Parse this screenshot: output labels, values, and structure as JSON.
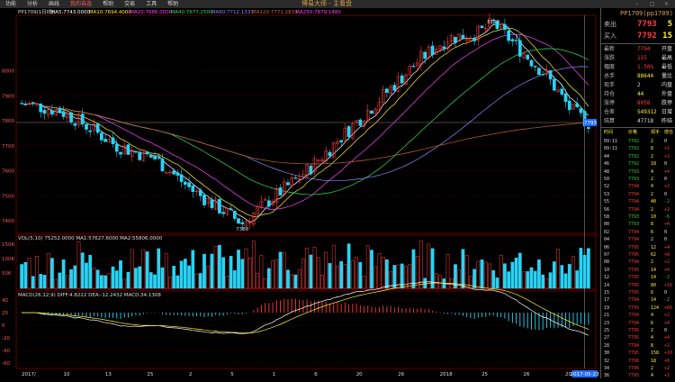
{
  "app": {
    "title": "博易大师 - 主看盘"
  },
  "menus": [
    {
      "label": "功能",
      "active": false
    },
    {
      "label": "分析",
      "active": false
    },
    {
      "label": "画线",
      "active": false
    },
    {
      "label": "我的自选",
      "active": true
    },
    {
      "label": "帮助",
      "active": false
    },
    {
      "label": "交易",
      "active": false
    },
    {
      "label": "工具",
      "active": false
    },
    {
      "label": "帮助",
      "active": false
    }
  ],
  "window_controls": [
    "–",
    "□",
    "×"
  ],
  "colors": {
    "up": "#ff3b3b",
    "down": "#29d3f5",
    "ma5": "#ffffff",
    "ma10": "#ffee33",
    "ma20": "#ff44ff",
    "ma40": "#33dd55",
    "ma60": "#8888ff",
    "ma120": "#c86432",
    "bg": "#000000",
    "grid": "#7a0000"
  },
  "main_chart": {
    "info_line": [
      {
        "text": "PP1709(1日线)",
        "color": "#dddddd"
      },
      {
        "text": "MA5:7743.0000",
        "color": "#ffffff"
      },
      {
        "text": "MA10:7694.4000",
        "color": "#ffee33"
      },
      {
        "text": "MA20:7686.0000",
        "color": "#ff44ff"
      },
      {
        "text": "MA40:7677.2500",
        "color": "#33dd55"
      },
      {
        "text": "MA60:7712.1333",
        "color": "#8888ff"
      },
      {
        "text": "MA120:7771.2833",
        "color": "#c86432"
      },
      {
        "text": "MA250:7879.1480",
        "color": "#ff44ff"
      }
    ],
    "y_ticks": [
      {
        "v": 8000,
        "t": "8000"
      },
      {
        "v": 7900,
        "t": "7900"
      },
      {
        "v": 7800,
        "t": "7800"
      },
      {
        "v": 7700,
        "t": "7700"
      },
      {
        "v": 7600,
        "t": "7600"
      },
      {
        "v": 7500,
        "t": "7500"
      },
      {
        "v": 7400,
        "t": "7400"
      }
    ],
    "high_label": "8193",
    "low_label": "7388",
    "last_price_tag": "7793"
  },
  "volume_panel": {
    "info": "VOL(5,10) 75252.0000 MA1:57627.6000 MA2:55806.0000",
    "y_ticks": [
      "150K",
      "100K",
      "50K"
    ]
  },
  "macd_panel": {
    "info": "MACD(26,12,9) DIFF:4.8222 DEA:-12.2432 MACD:34.1308",
    "y_ticks": [
      "40",
      "20",
      "0",
      "-20",
      "-40",
      "-60"
    ]
  },
  "x_axis": {
    "labels": [
      "2017/",
      "10",
      "13",
      "25",
      "2",
      "5",
      "1",
      "6",
      "20",
      "26",
      "2018",
      "25",
      "26",
      "2017/"
    ],
    "cursor_tag": "2017-05-23"
  },
  "quote": {
    "title": "PP1709(pp1709)",
    "sell": {
      "label": "卖出",
      "price": "7793",
      "qty": "5"
    },
    "buy": {
      "label": "买入",
      "price": "7792",
      "qty": "15"
    },
    "stats": [
      {
        "l": "最新",
        "v1": "7794",
        "v2": "开盘",
        "c1": "red"
      },
      {
        "l": "涨跌",
        "v1": "115",
        "v2": "最高",
        "c1": "red"
      },
      {
        "l": "幅度",
        "v1": "1.50%",
        "v2": "最低",
        "c1": "red"
      },
      {
        "l": "总手",
        "v1": "88644",
        "v2": "量比",
        "c1": "yellow"
      },
      {
        "l": "现手",
        "v1": "2",
        "v2": "内盘",
        "c1": "white"
      },
      {
        "l": "持仓",
        "v1": "44",
        "v2": "外盘",
        "c1": "yellow"
      },
      {
        "l": "涨停",
        "v1": "8058",
        "v2": "跌停",
        "c1": "red"
      },
      {
        "l": "仓差",
        "v1": "549312",
        "v2": "日增",
        "c1": "yellow"
      },
      {
        "l": "结算",
        "v1": "47718",
        "v2": "昨结",
        "c1": "white"
      }
    ],
    "ticks_header": [
      "时间",
      "价格",
      "现手",
      "增仓"
    ],
    "ticks": [
      {
        "t": "09:11",
        "p": "7792",
        "q": "2",
        "o": "0"
      },
      {
        "t": "09:11",
        "p": "7792",
        "q": "8",
        "o": "+1"
      },
      {
        "t": "44",
        "p": "7792",
        "q": "2",
        "o": "+2"
      },
      {
        "t": "46",
        "p": "7792",
        "q": "18",
        "o": "0"
      },
      {
        "t": "48",
        "p": "7793",
        "q": "4",
        "o": "+4"
      },
      {
        "t": "50",
        "p": "7793",
        "q": "2",
        "o": "0"
      },
      {
        "t": "52",
        "p": "7794",
        "q": "4",
        "o": "+2"
      },
      {
        "t": "53",
        "p": "7794",
        "q": "2",
        "o": "0"
      },
      {
        "t": "55",
        "p": "7794",
        "q": "40",
        "o": "-2"
      },
      {
        "t": "56",
        "p": "7794",
        "q": "2",
        "o": "+2"
      },
      {
        "t": "58",
        "p": "7793",
        "q": "10",
        "o": "-6"
      },
      {
        "t": "00",
        "p": "7793",
        "q": "8",
        "o": "+4"
      },
      {
        "t": "02",
        "p": "7794",
        "q": "6",
        "o": "0"
      },
      {
        "t": "04",
        "p": "7794",
        "q": "2",
        "o": "0"
      },
      {
        "t": "06",
        "p": "7795",
        "q": "12",
        "o": "+4"
      },
      {
        "t": "07",
        "p": "7795",
        "q": "62",
        "o": "+8"
      },
      {
        "t": "08",
        "p": "7794",
        "q": "2",
        "o": "+2"
      },
      {
        "t": "10",
        "p": "7795",
        "q": "14",
        "o": "+4"
      },
      {
        "t": "12",
        "p": "7795",
        "q": "14",
        "o": "-2"
      },
      {
        "t": "14",
        "p": "7795",
        "q": "80",
        "o": "+10"
      },
      {
        "t": "15",
        "p": "7795",
        "q": "6",
        "o": "0"
      },
      {
        "t": "17",
        "p": "7794",
        "q": "14",
        "o": "-2"
      },
      {
        "t": "19",
        "p": "7795",
        "q": "124",
        "o": "+66"
      },
      {
        "t": "21",
        "p": "7794",
        "q": "4",
        "o": "+2"
      },
      {
        "t": "23",
        "p": "7794",
        "q": "6",
        "o": "+4"
      },
      {
        "t": "25",
        "p": "7795",
        "q": "2",
        "o": "0"
      },
      {
        "t": "27",
        "p": "7795",
        "q": "4",
        "o": "+4"
      },
      {
        "t": "28",
        "p": "7794",
        "q": "8",
        "o": "+2"
      },
      {
        "t": "30",
        "p": "7795",
        "q": "158",
        "o": "+10"
      },
      {
        "t": "32",
        "p": "7796",
        "q": "18",
        "o": "+6"
      },
      {
        "t": "34",
        "p": "7796",
        "q": "2",
        "o": "+2"
      },
      {
        "t": "36",
        "p": "7795",
        "q": "4",
        "o": "+1"
      }
    ]
  }
}
